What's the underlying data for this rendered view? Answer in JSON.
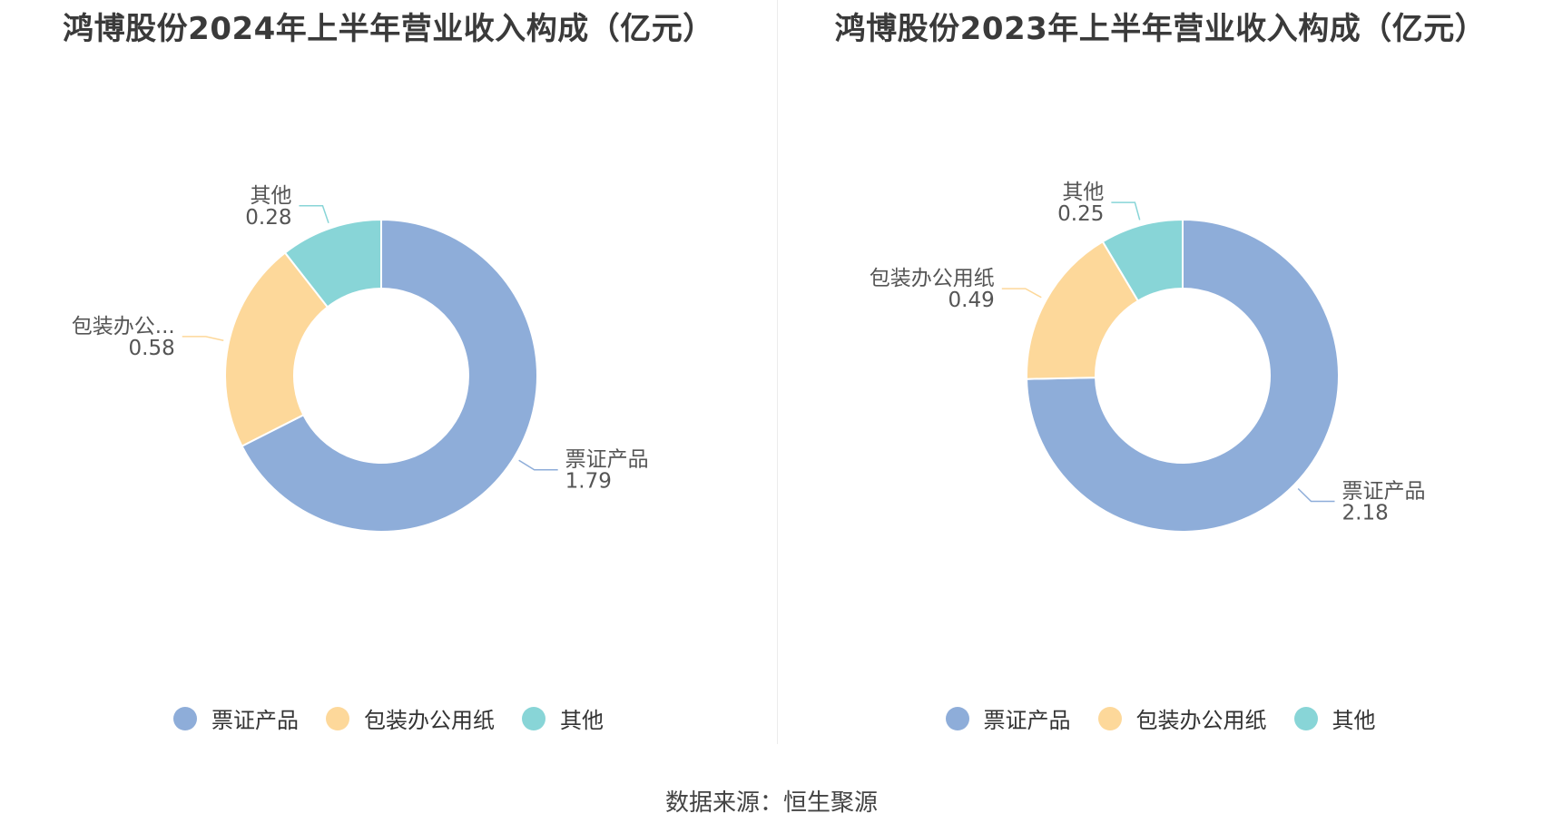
{
  "colors": {
    "series": [
      "#8eadd9",
      "#fdd89a",
      "#88d5d7"
    ]
  },
  "legend": [
    "票证产品",
    "包装办公用纸",
    "其他"
  ],
  "source": "数据来源：恒生聚源",
  "charts": [
    {
      "title": "鸿博股份2024年上半年营业收入构成（亿元）",
      "labels": [
        {
          "name": "票证产品",
          "value": "1.79"
        },
        {
          "name": "包装办公...",
          "value": "0.58"
        },
        {
          "name": "其他",
          "value": "0.28"
        }
      ]
    },
    {
      "title": "鸿博股份2023年上半年营业收入构成（亿元）",
      "labels": [
        {
          "name": "票证产品",
          "value": "2.18"
        },
        {
          "name": "包装办公用纸",
          "value": "0.49"
        },
        {
          "name": "其他",
          "value": "0.25"
        }
      ]
    }
  ],
  "chart_data": [
    {
      "type": "pie",
      "title": "鸿博股份2024年上半年营业收入构成（亿元）",
      "categories": [
        "票证产品",
        "包装办公用纸",
        "其他"
      ],
      "values": [
        1.79,
        0.58,
        0.28
      ],
      "legend": "bottom"
    },
    {
      "type": "pie",
      "title": "鸿博股份2023年上半年营业收入构成（亿元）",
      "categories": [
        "票证产品",
        "包装办公用纸",
        "其他"
      ],
      "values": [
        2.18,
        0.49,
        0.25
      ],
      "legend": "bottom"
    }
  ]
}
